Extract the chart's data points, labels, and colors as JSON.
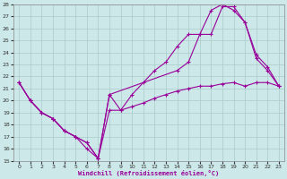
{
  "xlabel": "Windchill (Refroidissement éolien,°C)",
  "background_color": "#cce8e8",
  "grid_color": "#aacccc",
  "line_color": "#990099",
  "xlim": [
    -0.5,
    23.5
  ],
  "ylim": [
    15,
    28
  ],
  "yticks": [
    15,
    16,
    17,
    18,
    19,
    20,
    21,
    22,
    23,
    24,
    25,
    26,
    27,
    28
  ],
  "xticks": [
    0,
    1,
    2,
    3,
    4,
    5,
    6,
    7,
    8,
    9,
    10,
    11,
    12,
    13,
    14,
    15,
    16,
    17,
    18,
    19,
    20,
    21,
    22,
    23
  ],
  "lines": [
    {
      "x": [
        0,
        1,
        2,
        3,
        4,
        5,
        6,
        7,
        8,
        9,
        10,
        11,
        12,
        13,
        14,
        15,
        16,
        17,
        18,
        19,
        20,
        21,
        22,
        23
      ],
      "y": [
        21.5,
        20.0,
        19.0,
        18.5,
        17.5,
        17.0,
        16.0,
        15.2,
        19.2,
        19.2,
        19.5,
        19.8,
        20.2,
        20.5,
        20.8,
        21.0,
        21.2,
        21.2,
        21.4,
        21.5,
        21.2,
        21.5,
        21.5,
        21.2
      ]
    },
    {
      "x": [
        0,
        1,
        2,
        3,
        4,
        5,
        6,
        7,
        8,
        9,
        10,
        11,
        12,
        13,
        14,
        15,
        16,
        17,
        18,
        19,
        20,
        21,
        22,
        23
      ],
      "y": [
        21.5,
        20.0,
        19.0,
        18.5,
        17.5,
        17.0,
        16.5,
        15.2,
        20.5,
        19.2,
        20.5,
        21.5,
        22.5,
        23.2,
        24.5,
        25.5,
        25.5,
        27.5,
        28.0,
        27.5,
        26.5,
        23.5,
        22.5,
        21.2
      ]
    },
    {
      "x": [
        0,
        1,
        2,
        3,
        4,
        5,
        6,
        7,
        8,
        14,
        15,
        16,
        17,
        18,
        19,
        20,
        21,
        22,
        23
      ],
      "y": [
        21.5,
        20.0,
        19.0,
        18.5,
        17.5,
        17.0,
        16.5,
        15.2,
        20.5,
        22.5,
        23.2,
        25.5,
        25.5,
        27.8,
        27.8,
        26.5,
        23.8,
        22.8,
        21.2
      ]
    }
  ]
}
